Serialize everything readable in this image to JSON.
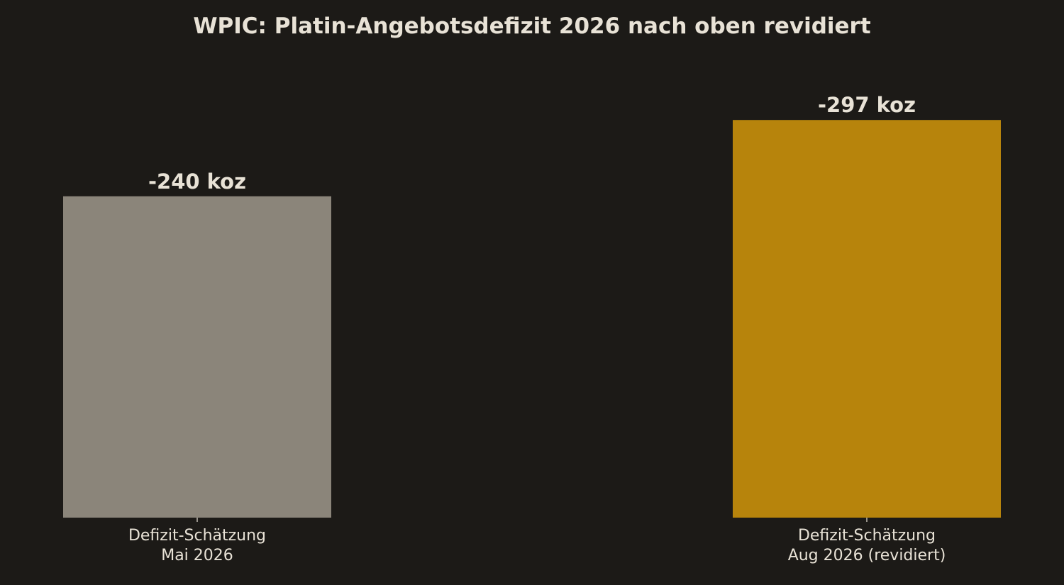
{
  "chart_data": {
    "type": "bar",
    "title": "WPIC: Platin-Angebotsdefizit 2026 nach oben revidiert",
    "categories": [
      "Defizit-Schätzung\nMai 2026",
      "Defizit-Schätzung\nAug 2026 (revidiert)"
    ],
    "values": [
      -240,
      -297
    ],
    "value_labels": [
      "-240 koz",
      "-297 koz"
    ],
    "colors": [
      "#8b857a",
      "#b7840c"
    ],
    "ylim": [
      0,
      -341.6
    ]
  }
}
